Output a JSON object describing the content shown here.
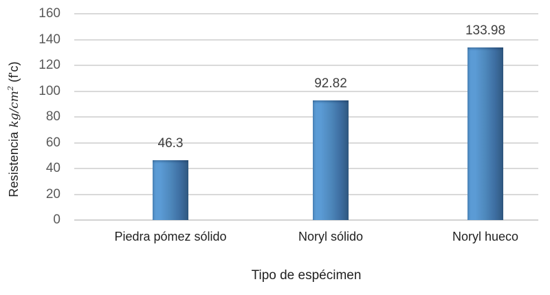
{
  "chart_data": {
    "type": "bar",
    "title": "",
    "categories": [
      "Piedra pómez sólido",
      "Noryl sólido",
      "Noryl hueco"
    ],
    "values": [
      46.3,
      92.82,
      133.98
    ],
    "value_labels": [
      "46.3",
      "92.82",
      "133.98"
    ],
    "xlabel": "Tipo de espécimen",
    "ylabel": "Resistencia kg/cm² (f'c)",
    "y_title": {
      "prefix": "Resistencia",
      "math": "kg/cm",
      "sup": "2",
      "suffix": "(f'c)"
    },
    "ylim": [
      0,
      160
    ],
    "ytick_step": 20,
    "yticks": [
      0,
      20,
      40,
      60,
      80,
      100,
      120,
      140,
      160
    ],
    "grid": "horizontal",
    "legend": "none",
    "colors": {
      "bar_light": "#5b9bd5",
      "bar_dark": "#305880",
      "gridline": "#d9d9d9",
      "tick_text": "#595959",
      "label_text": "#3d3d3d",
      "axis_text": "#1f1f1f"
    }
  }
}
